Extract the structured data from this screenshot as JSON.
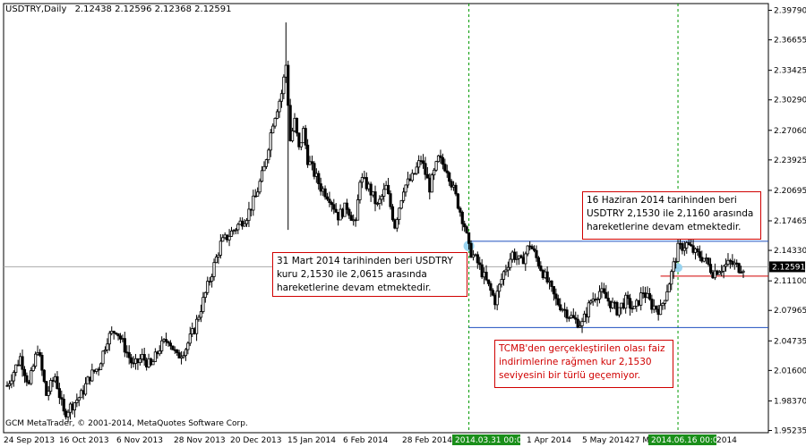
{
  "header": {
    "symbol": "USDTRY,Daily",
    "ohlc": "2.12438 2.12596 2.12368 2.12591"
  },
  "copyright": "GCM MetaTrader, © 2001-2014, MetaQuotes Software Corp.",
  "price_badge": "2.12591",
  "annotations": {
    "march": "31 Mart 2014 tarihinden beri USDTRY\nkuru 2,1530 ile 2,0615 arasında\nhareketlerine devam etmektedir.",
    "june": "16 Haziran 2014 tarihinden beri\nUSDTRY 2,1530 ile 2,1160 arasında\nhareketlerine devam etmektedir.",
    "tcmb": "TCMB'den gerçekleştirilen olası faiz\nindirimlerine rağmen kur 2,1530\nseviyesini bir türlü geçemiyor."
  },
  "colors": {
    "candle": "#000000",
    "grid_line_vertical": "#009900",
    "level_line": "#1f4fbf",
    "annotation_border": "#d00000",
    "badge_bg": "#000000",
    "date_badge_bg": "#1a8f1a",
    "marker": "#8fd0f0"
  },
  "chart_data": {
    "type": "candlestick",
    "symbol": "USDTRY",
    "timeframe": "Daily",
    "ylim": [
      1.95,
      2.405
    ],
    "y_ticks": [
      "2.39790",
      "2.36655",
      "2.33425",
      "2.30290",
      "2.27060",
      "2.23925",
      "2.20695",
      "2.17465",
      "2.14330",
      "2.11100",
      "2.07965",
      "2.04735",
      "2.01600",
      "1.98370",
      "1.95235"
    ],
    "x_ticks": [
      "24 Sep 2013",
      "16 Oct 2013",
      "6 Nov 2013",
      "28 Nov 2013",
      "20 Dec 2013",
      "15 Jan 2014",
      "6 Feb 2014",
      "28 Feb 2014",
      "2014.03.31 00:00",
      "1 Apr 2014",
      "5 May 2014",
      "27 M",
      "2014.06.16 00:00",
      "2014"
    ],
    "current_price": 2.12591,
    "levels": [
      {
        "value": 2.153
      },
      {
        "value": 2.0615
      },
      {
        "value": 2.116
      }
    ],
    "markers": [
      "2014.03.31 00:00",
      "2014.06.16 00:00"
    ],
    "anchor_points": [
      [
        0,
        2.0
      ],
      [
        6,
        2.03
      ],
      [
        10,
        2.0
      ],
      [
        14,
        2.04
      ],
      [
        18,
        1.99
      ],
      [
        22,
        2.01
      ],
      [
        26,
        1.97
      ],
      [
        30,
        1.98
      ],
      [
        34,
        1.99
      ],
      [
        38,
        2.01
      ],
      [
        42,
        2.02
      ],
      [
        46,
        2.05
      ],
      [
        50,
        2.06
      ],
      [
        54,
        2.04
      ],
      [
        58,
        2.02
      ],
      [
        62,
        2.03
      ],
      [
        66,
        2.02
      ],
      [
        70,
        2.04
      ],
      [
        74,
        2.05
      ],
      [
        78,
        2.03
      ],
      [
        82,
        2.04
      ],
      [
        86,
        2.06
      ],
      [
        90,
        2.09
      ],
      [
        94,
        2.12
      ],
      [
        98,
        2.15
      ],
      [
        102,
        2.16
      ],
      [
        106,
        2.17
      ],
      [
        110,
        2.18
      ],
      [
        114,
        2.2
      ],
      [
        118,
        2.23
      ],
      [
        122,
        2.28
      ],
      [
        126,
        2.31
      ],
      [
        128,
        2.34
      ],
      [
        130,
        2.26
      ],
      [
        132,
        2.28
      ],
      [
        134,
        2.25
      ],
      [
        136,
        2.27
      ],
      [
        138,
        2.24
      ],
      [
        140,
        2.23
      ],
      [
        144,
        2.21
      ],
      [
        148,
        2.2
      ],
      [
        152,
        2.18
      ],
      [
        156,
        2.19
      ],
      [
        160,
        2.17
      ],
      [
        162,
        2.22
      ],
      [
        166,
        2.21
      ],
      [
        170,
        2.19
      ],
      [
        174,
        2.21
      ],
      [
        178,
        2.17
      ],
      [
        182,
        2.21
      ],
      [
        186,
        2.22
      ],
      [
        190,
        2.24
      ],
      [
        194,
        2.21
      ],
      [
        198,
        2.24
      ],
      [
        202,
        2.23
      ],
      [
        206,
        2.2
      ],
      [
        210,
        2.17
      ],
      [
        212,
        2.145
      ],
      [
        216,
        2.13
      ],
      [
        220,
        2.11
      ],
      [
        224,
        2.09
      ],
      [
        228,
        2.12
      ],
      [
        232,
        2.14
      ],
      [
        236,
        2.13
      ],
      [
        240,
        2.15
      ],
      [
        244,
        2.13
      ],
      [
        248,
        2.11
      ],
      [
        252,
        2.09
      ],
      [
        256,
        2.08
      ],
      [
        260,
        2.07
      ],
      [
        264,
        2.065
      ],
      [
        268,
        2.09
      ],
      [
        272,
        2.1
      ],
      [
        276,
        2.09
      ],
      [
        280,
        2.08
      ],
      [
        284,
        2.09
      ],
      [
        288,
        2.08
      ],
      [
        292,
        2.1
      ],
      [
        296,
        2.085
      ],
      [
        300,
        2.08
      ],
      [
        304,
        2.11
      ],
      [
        308,
        2.145
      ],
      [
        312,
        2.15
      ],
      [
        316,
        2.14
      ],
      [
        320,
        2.135
      ],
      [
        324,
        2.12
      ],
      [
        328,
        2.125
      ],
      [
        332,
        2.13
      ],
      [
        336,
        2.125
      ],
      [
        338,
        2.126
      ]
    ],
    "spike_high": 2.385,
    "spike_low": 2.165,
    "spike_candle": 128
  }
}
